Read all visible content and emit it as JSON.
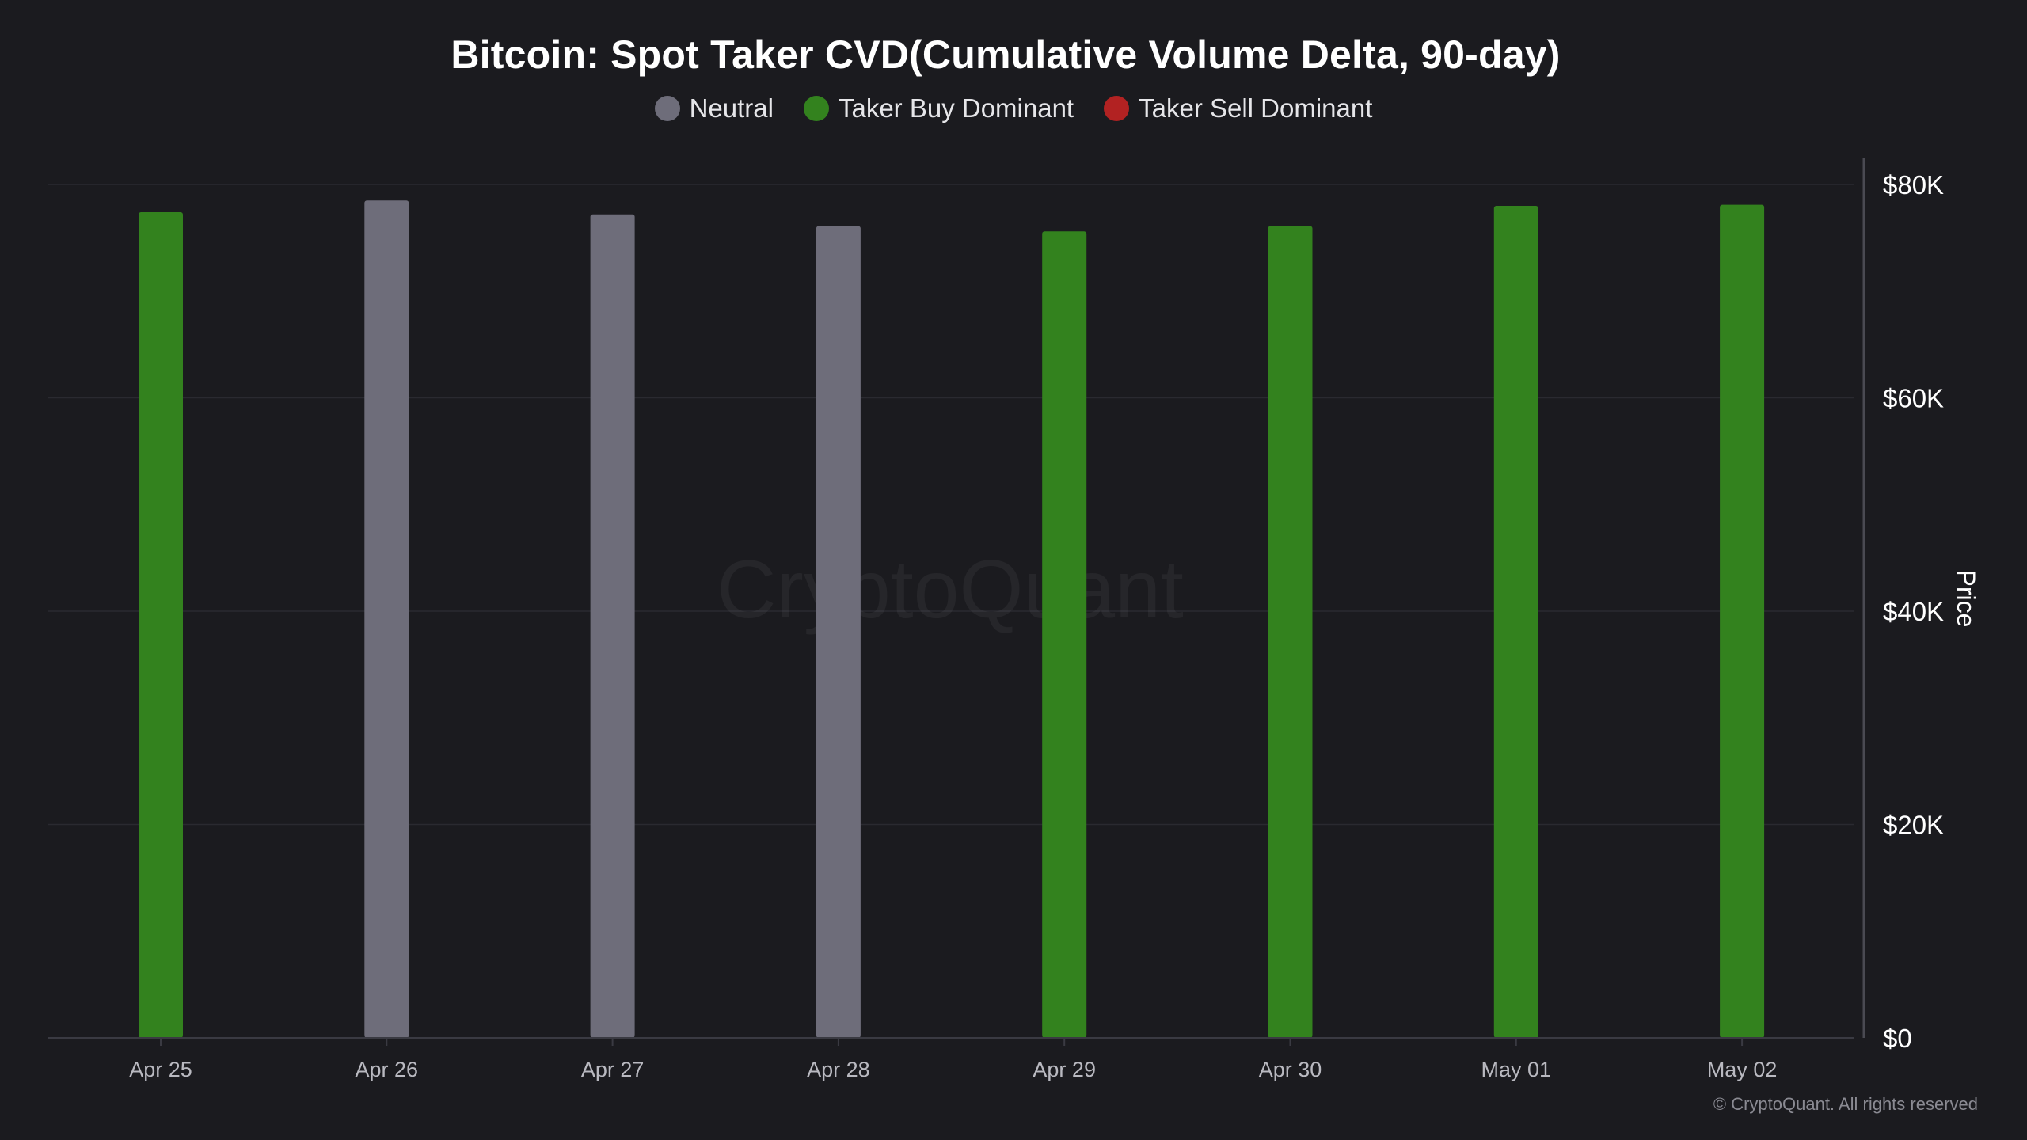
{
  "chart_data": {
    "type": "bar",
    "title": "Bitcoin: Spot Taker CVD(Cumulative Volume Delta, 90-day)",
    "categories": [
      "Apr 25",
      "Apr 26",
      "Apr 27",
      "Apr 28",
      "Apr 29",
      "Apr 30",
      "May 01",
      "May 02"
    ],
    "values": [
      77400,
      78500,
      77200,
      76100,
      75600,
      76100,
      78000,
      78100
    ],
    "bar_status": [
      "Taker Buy Dominant",
      "Neutral",
      "Neutral",
      "Neutral",
      "Taker Buy Dominant",
      "Taker Buy Dominant",
      "Taker Buy Dominant",
      "Taker Buy Dominant"
    ],
    "legend": [
      {
        "name": "Neutral",
        "color": "#6e6d7a"
      },
      {
        "name": "Taker Buy Dominant",
        "color": "#33821e"
      },
      {
        "name": "Taker Sell Dominant",
        "color": "#b22222"
      }
    ],
    "ylabel": "Price",
    "yticks": [
      "$0",
      "$20K",
      "$40K",
      "$60K",
      "$80K"
    ],
    "ylim": [
      0,
      80000
    ],
    "y_axis_side": "right",
    "grid": true,
    "legend_position": "top-center",
    "watermark": "CryptoQuant"
  },
  "footer": {
    "copyright": "© CryptoQuant. All rights reserved"
  },
  "colors": {
    "background": "#1b1b1f",
    "grid": "#2a2a30",
    "axis": "#3a3a42",
    "tick_text": "#ffffff",
    "xtick_text": "#b9b9c0"
  }
}
